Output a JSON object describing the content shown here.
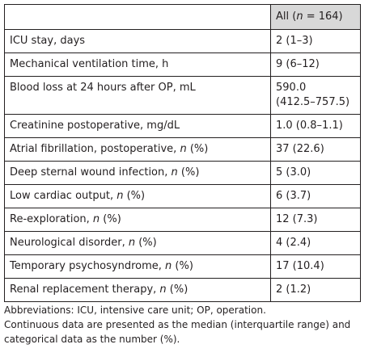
{
  "header": {
    "col1": "",
    "col2_prefix": "All (",
    "col2_n": "n",
    "col2_suffix": " = 164)"
  },
  "rows": [
    {
      "label": "ICU stay, days",
      "italic_n": false,
      "value": "2 (1–3)"
    },
    {
      "label": "Mechanical ventilation time, h",
      "italic_n": false,
      "value": "9 (6–12)"
    },
    {
      "label": "Blood loss at 24 hours after OP, mL",
      "italic_n": false,
      "value": "590.0 (412.5–757.5)"
    },
    {
      "label": "Creatinine postoperative, mg/dL",
      "italic_n": false,
      "value": "1.0 (0.8–1.1)"
    },
    {
      "label": "Atrial fibrillation, postoperative, ",
      "italic_n": true,
      "suffix": " (%)",
      "value": "37 (22.6)"
    },
    {
      "label": "Deep sternal wound infection, ",
      "italic_n": true,
      "suffix": " (%)",
      "value": "5 (3.0)"
    },
    {
      "label": "Low cardiac output, ",
      "italic_n": true,
      "suffix": " (%)",
      "value": "6 (3.7)"
    },
    {
      "label": "Re-exploration, ",
      "italic_n": true,
      "suffix": " (%)",
      "value": "12 (7.3)"
    },
    {
      "label": "Neurological disorder, ",
      "italic_n": true,
      "suffix": " (%)",
      "value": "4 (2.4)"
    },
    {
      "label": "Temporary psychosyndrome, ",
      "italic_n": true,
      "suffix": " (%)",
      "value": "17 (10.4)"
    },
    {
      "label": "Renal replacement therapy, ",
      "italic_n": true,
      "suffix": " (%)",
      "value": "2 (1.2)"
    }
  ],
  "n_symbol": "n",
  "footnotes": {
    "line1": "Abbreviations: ICU, intensive care unit; OP, operation.",
    "line2": "Continuous data are presented as the median (interquartile range) and",
    "line3": "categorical data as the number (%)."
  }
}
